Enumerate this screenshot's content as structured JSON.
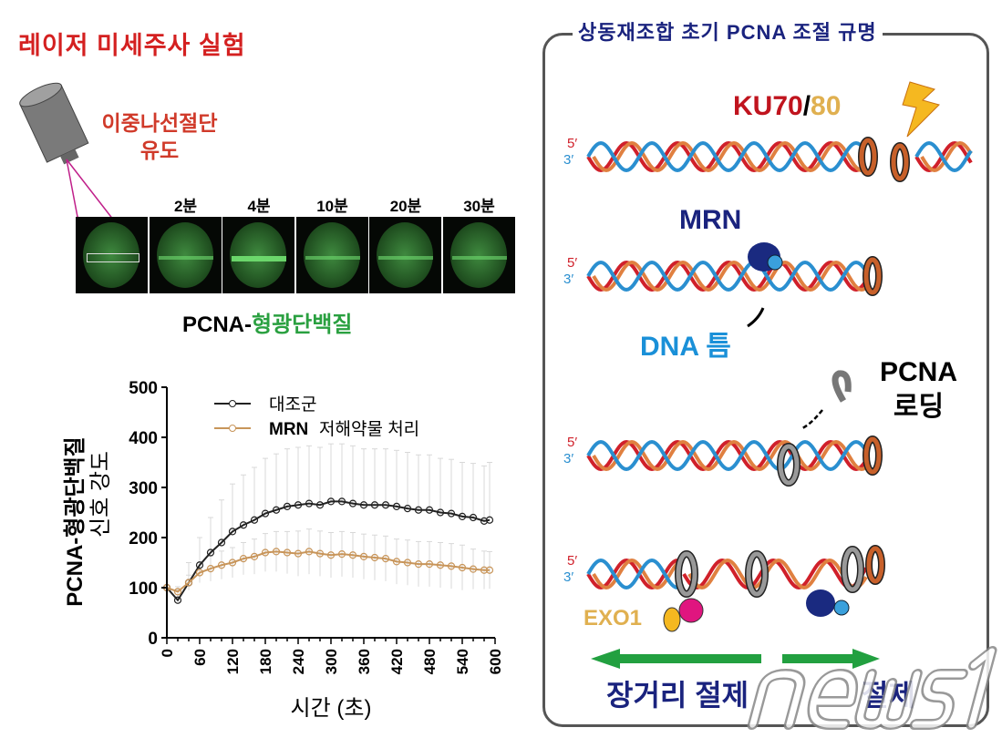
{
  "left": {
    "title": "레이저 미세주사 실험",
    "dsb_label_line1": "이중나선절단",
    "dsb_label_line2": "유도",
    "timepoints": [
      "2분",
      "4분",
      "10분",
      "20분",
      "30분"
    ],
    "pcna_label_prefix": "PCNA-",
    "pcna_label_suffix": "형광단백질"
  },
  "chart_data": {
    "type": "line",
    "xlabel": "시간 (초)",
    "ylabel_line1": "PCNA-형광단백질",
    "ylabel_line2": "신호 강도",
    "xlim": [
      0,
      600
    ],
    "ylim": [
      0,
      500
    ],
    "xticks": [
      0,
      60,
      120,
      180,
      240,
      300,
      360,
      420,
      480,
      540,
      600
    ],
    "yticks": [
      0,
      100,
      200,
      300,
      400,
      500
    ],
    "legend_position": "top",
    "x": [
      0,
      20,
      40,
      60,
      80,
      100,
      120,
      140,
      160,
      180,
      200,
      220,
      240,
      260,
      280,
      300,
      320,
      340,
      360,
      380,
      400,
      420,
      440,
      460,
      480,
      500,
      520,
      540,
      560,
      580,
      590
    ],
    "series": [
      {
        "name": "대조군",
        "color": "#222222",
        "values": [
          100,
          75,
          110,
          145,
          170,
          190,
          212,
          225,
          235,
          248,
          255,
          262,
          265,
          268,
          265,
          272,
          272,
          268,
          265,
          265,
          265,
          262,
          258,
          255,
          255,
          250,
          248,
          242,
          240,
          233,
          235
        ],
        "error": [
          0,
          20,
          40,
          55,
          70,
          85,
          95,
          100,
          105,
          110,
          112,
          115,
          115,
          115,
          115,
          115,
          115,
          115,
          112,
          112,
          112,
          112,
          112,
          110,
          110,
          108,
          108,
          108,
          108,
          110,
          115
        ]
      },
      {
        "name_bold": "MRN",
        "name": "저해약물 처리",
        "color": "#c8955a",
        "values": [
          100,
          92,
          110,
          130,
          138,
          145,
          150,
          158,
          162,
          170,
          172,
          170,
          168,
          172,
          168,
          165,
          167,
          165,
          162,
          160,
          158,
          152,
          150,
          147,
          147,
          145,
          143,
          140,
          137,
          135,
          135
        ],
        "error": [
          0,
          10,
          15,
          20,
          25,
          28,
          30,
          32,
          35,
          38,
          40,
          42,
          45,
          45,
          45,
          45,
          45,
          45,
          45,
          45,
          45,
          45,
          45,
          45,
          45,
          45,
          45,
          45,
          40,
          38,
          37
        ]
      }
    ]
  },
  "right": {
    "title": "상동재조합 초기 PCNA 조절 규명",
    "ku70": "KU70",
    "slash": "/",
    "ku80": "80",
    "mrn": "MRN",
    "dna_nick": "DNA 틈",
    "pcna_loading_line1": "PCNA",
    "pcna_loading_line2": "로딩",
    "exo1": "EXO1",
    "five_prime": "5′",
    "three_prime": "3′",
    "long_resection": "장거리 절제",
    "short_resection_fragment": "절제"
  },
  "watermark": "news1",
  "colors": {
    "title_red": "#d42020",
    "navy": "#1a237e",
    "strand_red": "#d0202a",
    "strand_blue": "#2a8fd0",
    "strand_orange": "#e08040",
    "arrow_green": "#22a040"
  }
}
